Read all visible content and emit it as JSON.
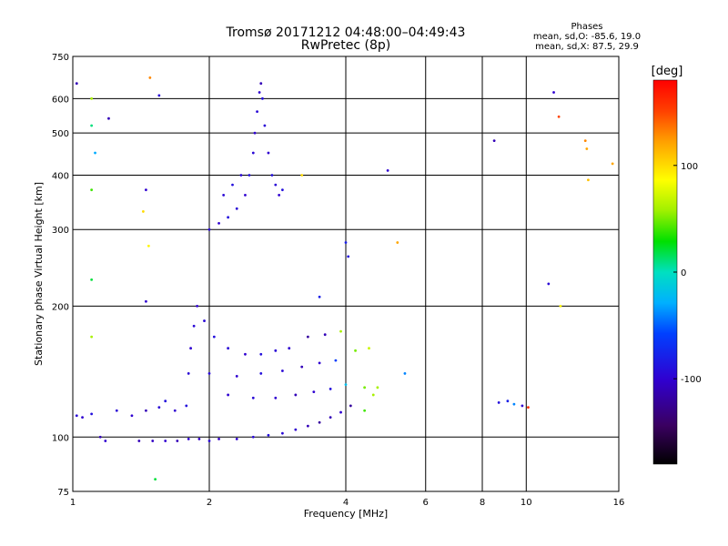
{
  "chart_data": {
    "type": "scatter",
    "title": "Tromsø 20171212 04:48:00–04:49:43",
    "subtitle": "RwPretec (8p)",
    "xlabel": "Frequency [MHz]",
    "ylabel": "Stationary phase Virtual Height [km]",
    "x_scale": "log",
    "y_scale": "log",
    "xlim": [
      1,
      16
    ],
    "ylim": [
      75,
      750
    ],
    "x_ticks": [
      1,
      2,
      4,
      6,
      8,
      10,
      16
    ],
    "y_ticks": [
      75,
      100,
      200,
      300,
      400,
      500,
      600,
      750
    ],
    "x_tick_labels": [
      "1",
      "2",
      "4",
      "6",
      "8",
      "10",
      "16"
    ],
    "y_tick_labels": [
      "75",
      "100",
      "200",
      "300",
      "400",
      "500",
      "600",
      "750"
    ],
    "grid": true,
    "legend": {
      "title": "Phases",
      "line1": "mean, sd,O: -85.6, 19.0",
      "line2": "mean, sd,X:  87.5, 29.9"
    },
    "colorbar": {
      "label": "[deg]",
      "ticks": [
        100,
        0,
        -100
      ],
      "tick_labels": [
        "100",
        "0",
        "-100"
      ],
      "range": [
        -180,
        180
      ]
    },
    "series": [
      {
        "points": [
          {
            "x": 1.02,
            "y": 112,
            "c": -95
          },
          {
            "x": 1.05,
            "y": 111,
            "c": -100
          },
          {
            "x": 1.1,
            "y": 113,
            "c": -90
          },
          {
            "x": 1.15,
            "y": 100,
            "c": -110
          },
          {
            "x": 1.18,
            "y": 98,
            "c": -100
          },
          {
            "x": 1.25,
            "y": 115,
            "c": -95
          },
          {
            "x": 1.35,
            "y": 112,
            "c": -100
          },
          {
            "x": 1.45,
            "y": 115,
            "c": -110
          },
          {
            "x": 1.55,
            "y": 117,
            "c": -95
          },
          {
            "x": 1.6,
            "y": 121,
            "c": -90
          },
          {
            "x": 1.68,
            "y": 115,
            "c": -100
          },
          {
            "x": 1.78,
            "y": 118,
            "c": -90
          },
          {
            "x": 1.4,
            "y": 98,
            "c": -110
          },
          {
            "x": 1.5,
            "y": 98,
            "c": -105
          },
          {
            "x": 1.6,
            "y": 98,
            "c": -100
          },
          {
            "x": 1.7,
            "y": 98,
            "c": -110
          },
          {
            "x": 1.8,
            "y": 99,
            "c": -100
          },
          {
            "x": 1.9,
            "y": 99,
            "c": -105
          },
          {
            "x": 2.0,
            "y": 98,
            "c": -95
          },
          {
            "x": 2.1,
            "y": 99,
            "c": -105
          },
          {
            "x": 2.3,
            "y": 99,
            "c": -100
          },
          {
            "x": 2.5,
            "y": 100,
            "c": -95
          },
          {
            "x": 2.7,
            "y": 101,
            "c": -90
          },
          {
            "x": 2.9,
            "y": 102,
            "c": -95
          },
          {
            "x": 3.1,
            "y": 104,
            "c": -100
          },
          {
            "x": 3.3,
            "y": 106,
            "c": -110
          },
          {
            "x": 3.5,
            "y": 108,
            "c": -120
          },
          {
            "x": 3.7,
            "y": 111,
            "c": -110
          },
          {
            "x": 3.9,
            "y": 114,
            "c": -100
          },
          {
            "x": 4.1,
            "y": 118,
            "c": -120
          },
          {
            "x": 4.4,
            "y": 115,
            "c": 40
          },
          {
            "x": 4.6,
            "y": 125,
            "c": 60
          },
          {
            "x": 1.8,
            "y": 140,
            "c": -95
          },
          {
            "x": 1.82,
            "y": 160,
            "c": -100
          },
          {
            "x": 1.85,
            "y": 180,
            "c": -95
          },
          {
            "x": 1.88,
            "y": 200,
            "c": -100
          },
          {
            "x": 1.95,
            "y": 185,
            "c": -95
          },
          {
            "x": 2.05,
            "y": 170,
            "c": -90
          },
          {
            "x": 2.2,
            "y": 160,
            "c": -95
          },
          {
            "x": 2.4,
            "y": 155,
            "c": -100
          },
          {
            "x": 2.6,
            "y": 155,
            "c": -90
          },
          {
            "x": 2.8,
            "y": 158,
            "c": -95
          },
          {
            "x": 3.0,
            "y": 160,
            "c": -100
          },
          {
            "x": 3.3,
            "y": 170,
            "c": -120
          },
          {
            "x": 3.6,
            "y": 172,
            "c": -110
          },
          {
            "x": 3.9,
            "y": 175,
            "c": 60
          },
          {
            "x": 2.0,
            "y": 140,
            "c": -95
          },
          {
            "x": 2.3,
            "y": 138,
            "c": -100
          },
          {
            "x": 2.6,
            "y": 140,
            "c": -90
          },
          {
            "x": 2.9,
            "y": 142,
            "c": -95
          },
          {
            "x": 3.2,
            "y": 145,
            "c": -110
          },
          {
            "x": 3.5,
            "y": 148,
            "c": -100
          },
          {
            "x": 3.8,
            "y": 150,
            "c": -60
          },
          {
            "x": 4.2,
            "y": 158,
            "c": 50
          },
          {
            "x": 4.5,
            "y": 160,
            "c": 70
          },
          {
            "x": 2.2,
            "y": 125,
            "c": -100
          },
          {
            "x": 2.5,
            "y": 123,
            "c": -95
          },
          {
            "x": 2.8,
            "y": 123,
            "c": -100
          },
          {
            "x": 3.1,
            "y": 125,
            "c": -110
          },
          {
            "x": 3.4,
            "y": 127,
            "c": -100
          },
          {
            "x": 3.7,
            "y": 129,
            "c": -90
          },
          {
            "x": 4.0,
            "y": 132,
            "c": -20
          },
          {
            "x": 4.4,
            "y": 130,
            "c": 50
          },
          {
            "x": 4.7,
            "y": 130,
            "c": 60
          },
          {
            "x": 2.0,
            "y": 300,
            "c": -95
          },
          {
            "x": 2.1,
            "y": 310,
            "c": -100
          },
          {
            "x": 2.2,
            "y": 320,
            "c": -90
          },
          {
            "x": 2.3,
            "y": 335,
            "c": -95
          },
          {
            "x": 2.4,
            "y": 360,
            "c": -100
          },
          {
            "x": 2.45,
            "y": 400,
            "c": -90
          },
          {
            "x": 2.5,
            "y": 450,
            "c": -95
          },
          {
            "x": 2.52,
            "y": 500,
            "c": -100
          },
          {
            "x": 2.55,
            "y": 560,
            "c": -95
          },
          {
            "x": 2.58,
            "y": 620,
            "c": -100
          },
          {
            "x": 2.6,
            "y": 650,
            "c": -110
          },
          {
            "x": 2.62,
            "y": 600,
            "c": -90
          },
          {
            "x": 2.65,
            "y": 520,
            "c": -95
          },
          {
            "x": 2.7,
            "y": 450,
            "c": -100
          },
          {
            "x": 2.75,
            "y": 400,
            "c": -90
          },
          {
            "x": 2.8,
            "y": 380,
            "c": -95
          },
          {
            "x": 2.85,
            "y": 360,
            "c": -100
          },
          {
            "x": 2.9,
            "y": 370,
            "c": -90
          },
          {
            "x": 2.15,
            "y": 360,
            "c": -95
          },
          {
            "x": 2.25,
            "y": 380,
            "c": -90
          },
          {
            "x": 2.35,
            "y": 400,
            "c": -95
          },
          {
            "x": 4.0,
            "y": 280,
            "c": -80
          },
          {
            "x": 4.05,
            "y": 260,
            "c": -90
          },
          {
            "x": 4.95,
            "y": 410,
            "c": -100
          },
          {
            "x": 8.5,
            "y": 480,
            "c": -110
          },
          {
            "x": 8.7,
            "y": 120,
            "c": -90
          },
          {
            "x": 9.1,
            "y": 121,
            "c": -80
          },
          {
            "x": 9.4,
            "y": 119,
            "c": -40
          },
          {
            "x": 9.8,
            "y": 118,
            "c": -100
          },
          {
            "x": 10.1,
            "y": 117,
            "c": 160
          },
          {
            "x": 11.2,
            "y": 225,
            "c": -95
          },
          {
            "x": 11.5,
            "y": 620,
            "c": -100
          },
          {
            "x": 11.8,
            "y": 545,
            "c": 150
          },
          {
            "x": 11.9,
            "y": 200,
            "c": 90
          },
          {
            "x": 13.5,
            "y": 480,
            "c": 130
          },
          {
            "x": 13.6,
            "y": 460,
            "c": 120
          },
          {
            "x": 13.7,
            "y": 390,
            "c": 110
          },
          {
            "x": 15.5,
            "y": 425,
            "c": 120
          },
          {
            "x": 1.1,
            "y": 600,
            "c": 60
          },
          {
            "x": 1.1,
            "y": 520,
            "c": 10
          },
          {
            "x": 1.12,
            "y": 450,
            "c": -30
          },
          {
            "x": 1.1,
            "y": 370,
            "c": 40
          },
          {
            "x": 1.1,
            "y": 230,
            "c": 20
          },
          {
            "x": 1.1,
            "y": 170,
            "c": 60
          },
          {
            "x": 1.2,
            "y": 540,
            "c": -110
          },
          {
            "x": 1.48,
            "y": 670,
            "c": 130
          },
          {
            "x": 1.55,
            "y": 610,
            "c": -95
          },
          {
            "x": 1.45,
            "y": 370,
            "c": -100
          },
          {
            "x": 1.43,
            "y": 330,
            "c": 100
          },
          {
            "x": 1.47,
            "y": 275,
            "c": 90
          },
          {
            "x": 1.52,
            "y": 80,
            "c": 20
          },
          {
            "x": 1.45,
            "y": 205,
            "c": -100
          },
          {
            "x": 3.2,
            "y": 400,
            "c": 100
          },
          {
            "x": 3.5,
            "y": 210,
            "c": -80
          },
          {
            "x": 5.4,
            "y": 140,
            "c": -40
          },
          {
            "x": 5.2,
            "y": 280,
            "c": 120
          },
          {
            "x": 1.02,
            "y": 650,
            "c": -110
          }
        ]
      }
    ]
  }
}
